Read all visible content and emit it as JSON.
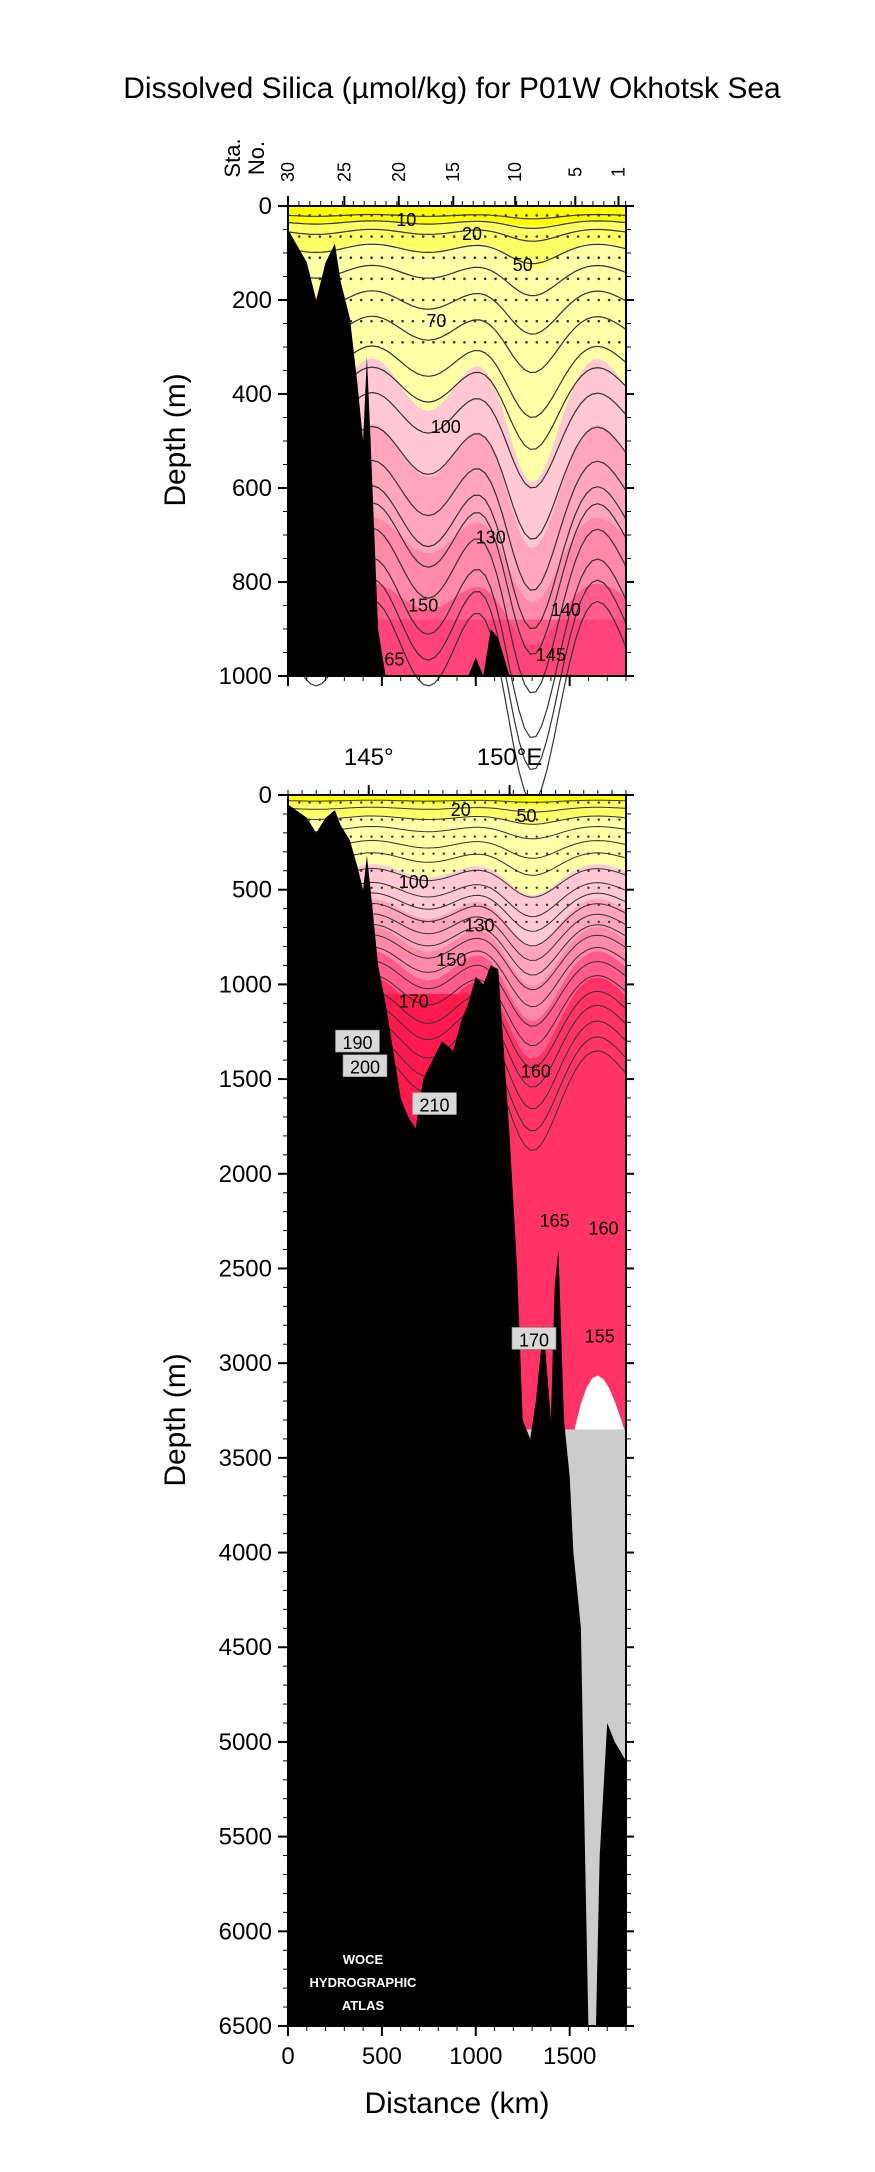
{
  "title": "Dissolved Silica (µmol/kg) for P01W Okhotsk Sea",
  "logo": {
    "line1": "WOCE",
    "line2": "HYDROGRAPHIC",
    "line3": "ATLAS"
  },
  "colors": {
    "yellow": "#ffff00",
    "yellow_mid": "#ffff66",
    "yellow_light": "#ffffa8",
    "pink_light": "#ffc8d2",
    "pink": "#ffa6bc",
    "pink_mid": "#ff8aa8",
    "rose": "#ff5c8c",
    "red": "#ff3366",
    "red_deep": "#ff1a4d",
    "bottom": "#000000",
    "no_data": "#cccccc",
    "label_box": "#d8d8d8"
  },
  "chart_data": [
    {
      "type": "contour_section",
      "panel": "upper",
      "parameter": "Dissolved Silica",
      "units": "µmol/kg",
      "ylabel": "Depth (m)",
      "ylim": [
        1000,
        0
      ],
      "yticks": [
        0,
        200,
        400,
        600,
        800,
        1000
      ],
      "xlim_km": [
        0,
        1800
      ],
      "station_axis_label": "Sta. No.",
      "station_ticks": [
        {
          "label": "30",
          "km": 0
        },
        {
          "label": "25",
          "km": 300
        },
        {
          "label": "20",
          "km": 590
        },
        {
          "label": "15",
          "km": 880
        },
        {
          "label": "10",
          "km": 1210
        },
        {
          "label": "5",
          "km": 1530
        },
        {
          "label": "1",
          "km": 1760
        }
      ],
      "contour_labels": [
        {
          "text": "10",
          "km": 630,
          "depth": 30,
          "boxed": false
        },
        {
          "text": "20",
          "km": 980,
          "depth": 60,
          "boxed": false
        },
        {
          "text": "50",
          "km": 1250,
          "depth": 125,
          "boxed": false
        },
        {
          "text": "70",
          "km": 790,
          "depth": 245,
          "boxed": false
        },
        {
          "text": "100",
          "km": 840,
          "depth": 470,
          "boxed": false
        },
        {
          "text": "130",
          "km": 1080,
          "depth": 705,
          "boxed": false
        },
        {
          "text": "140",
          "km": 1480,
          "depth": 860,
          "boxed": false
        },
        {
          "text": "150",
          "km": 720,
          "depth": 850,
          "boxed": false
        },
        {
          "text": "145",
          "km": 1400,
          "depth": 955,
          "boxed": false
        },
        {
          "text": "165",
          "km": 540,
          "depth": 965,
          "boxed": false
        }
      ]
    },
    {
      "type": "contour_section",
      "panel": "lower",
      "parameter": "Dissolved Silica",
      "units": "µmol/kg",
      "ylabel": "Depth (m)",
      "xlabel": "Distance (km)",
      "ylim": [
        6500,
        0
      ],
      "yticks": [
        0,
        500,
        1000,
        1500,
        2000,
        2500,
        3000,
        3500,
        4000,
        4500,
        5000,
        5500,
        6000,
        6500
      ],
      "xlim_km": [
        0,
        1800
      ],
      "xticks": [
        0,
        500,
        1000,
        1500
      ],
      "longitude_ticks": [
        {
          "label": "145°",
          "km": 430
        },
        {
          "label": "150°E",
          "km": 1180
        }
      ],
      "contour_labels": [
        {
          "text": "20",
          "km": 920,
          "depth": 80,
          "boxed": false
        },
        {
          "text": "50",
          "km": 1270,
          "depth": 110,
          "boxed": false
        },
        {
          "text": "100",
          "km": 670,
          "depth": 460,
          "boxed": false
        },
        {
          "text": "130",
          "km": 1020,
          "depth": 690,
          "boxed": false
        },
        {
          "text": "150",
          "km": 870,
          "depth": 870,
          "boxed": false
        },
        {
          "text": "170",
          "km": 670,
          "depth": 1090,
          "boxed": false
        },
        {
          "text": "190",
          "km": 370,
          "depth": 1310,
          "boxed": true
        },
        {
          "text": "200",
          "km": 410,
          "depth": 1440,
          "boxed": true
        },
        {
          "text": "210",
          "km": 780,
          "depth": 1640,
          "boxed": true
        },
        {
          "text": "160",
          "km": 1320,
          "depth": 1460,
          "boxed": false
        },
        {
          "text": "165",
          "km": 1420,
          "depth": 2250,
          "boxed": false
        },
        {
          "text": "160",
          "km": 1680,
          "depth": 2290,
          "boxed": false
        },
        {
          "text": "170",
          "km": 1310,
          "depth": 2880,
          "boxed": true
        },
        {
          "text": "155",
          "km": 1660,
          "depth": 2860,
          "boxed": false
        }
      ],
      "bottom_depth_profile_km_m": [
        [
          0,
          50
        ],
        [
          100,
          120
        ],
        [
          150,
          200
        ],
        [
          200,
          120
        ],
        [
          250,
          80
        ],
        [
          280,
          160
        ],
        [
          330,
          240
        ],
        [
          370,
          380
        ],
        [
          400,
          500
        ],
        [
          420,
          320
        ],
        [
          440,
          500
        ],
        [
          480,
          900
        ],
        [
          520,
          1100
        ],
        [
          560,
          1350
        ],
        [
          600,
          1600
        ],
        [
          640,
          1700
        ],
        [
          680,
          1760
        ],
        [
          720,
          1500
        ],
        [
          760,
          1420
        ],
        [
          820,
          1300
        ],
        [
          880,
          1350
        ],
        [
          920,
          1200
        ],
        [
          960,
          1100
        ],
        [
          1000,
          960
        ],
        [
          1040,
          1000
        ],
        [
          1080,
          900
        ],
        [
          1120,
          920
        ],
        [
          1180,
          1800
        ],
        [
          1220,
          2500
        ],
        [
          1250,
          3300
        ],
        [
          1290,
          3400
        ],
        [
          1320,
          3200
        ],
        [
          1360,
          2800
        ],
        [
          1400,
          3300
        ],
        [
          1420,
          2600
        ],
        [
          1440,
          2400
        ],
        [
          1470,
          3300
        ],
        [
          1500,
          3600
        ],
        [
          1520,
          4000
        ],
        [
          1540,
          4200
        ],
        [
          1560,
          4400
        ],
        [
          1580,
          5500
        ],
        [
          1600,
          6500
        ]
      ],
      "data_limit_depth_m": 3350
    }
  ],
  "axis_text": {
    "upper_ylabel": "Depth (m)",
    "lower_ylabel": "Depth (m)",
    "xlabel": "Distance (km)",
    "sta": "Sta.",
    "no": "No."
  }
}
